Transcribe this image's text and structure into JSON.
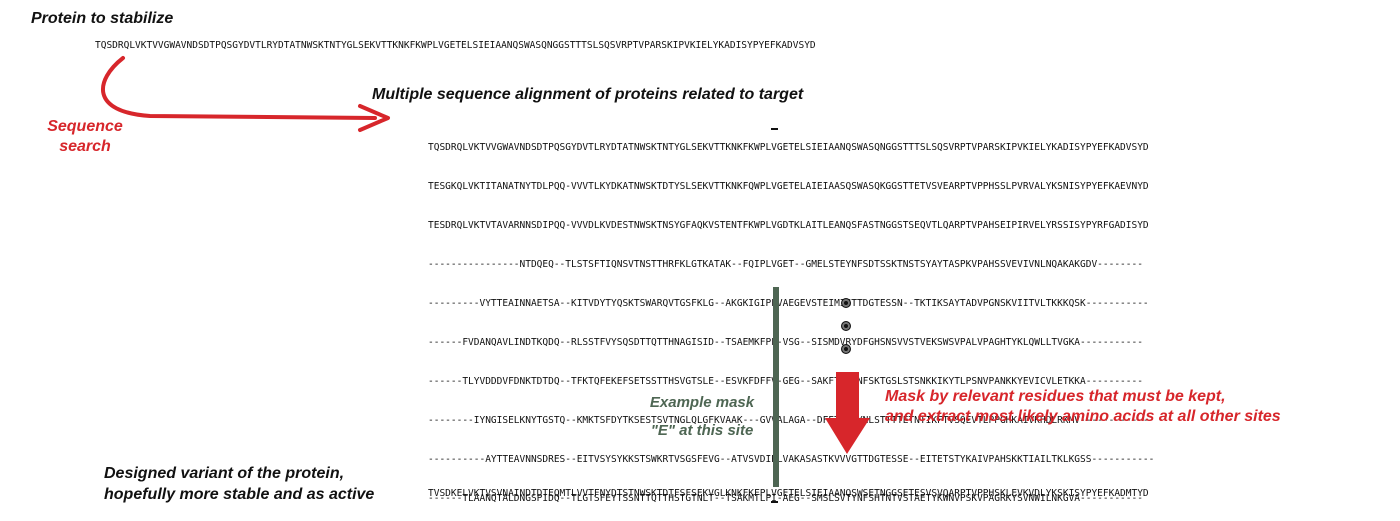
{
  "protein": {
    "heading": "Protein to stabilize",
    "sequence": "TQSDRQLVKTVVGWAVNDSDTPQSGYDVTLRYDTATNWSKTNTYGLSEKVTTKNKFKWPLVGETELSIEIAANQSWASQNGGSTTTSLSQSVRPTVPARSKIPVKIELYKADISYPYEFKADVSYD"
  },
  "search": {
    "label_line1": "Sequence",
    "label_line2": "search"
  },
  "msa": {
    "heading": "Multiple sequence alignment of proteins related to target",
    "rows": [
      "TQSDRQLVKTVVGWAVNDSDTPQSGYDVTLRYDTATNWSKTNTYGLSEKVTTKNKFKWPLVGETELSIEIAANQSWASQNGGSTTTSLSQSVRPTVPARSKIPVKIELYKADISYPYEFKADVSYD",
      "TESGKQLVKTITANATNYTDLPQQ-VVVTLKYDKATNWSKTDTYSLSEKVTTKNKFQWPLVGETELAIEIAASQSWASQKGGSTTETVSVEARPTVPPHSSLPVRVALYKSNISYPYEFKAEVNYD",
      "TESDRQLVKTVTAVARNNSDIPQQ-VVVDLKVDESTNWSKTNSYGFAQKVSTENTFKWPLVGDTKLAITLEANQSFASTNGGSTSEQVTLQARPTVPAHSEIPIRVELYRSSISYPYRFGADISYD",
      "----------------NTDQEQ--TLSTSFTIQNSVTNSTTHRFKLGTKATAK--FQIPLVGET--GMELSTEYNFSDTSSKTNSTSYAYTASPKVPAHSSVEVIVNLNQAKAKGDV--------",
      "---------VYTTEAINNAETSA--KITVDYTYQSKTSWARQVTGSFKLG--AKGKIGIPFVAEGEVSTEIMIGTTDGTESSN--TKTIKSAYTADVPGNSKVIITVLTKKKQSK-----------",
      "------FVDANQAVLINDTKQDQ--RLSSTFVYSQSDTTQTTHNAGISID--TSAEMKFPF-VSG--SISMDVRYDFGHSNSVVSTVEKSWSVPALVPAGHTYKLQWLLTVGKA-----------",
      "------TLYVDDDVFDNKTDTDQ--TFKTQFEKEFSETSSTTHSVGTSLE--ESVKFDFFV-GEG--SAKFTVNYNFSKTGSLSTSNKKIKYTLPSNVPANKKYEVICVLETKKA----------",
      "--------IYNGISELKNYTGSTQ--KMKTSFDYTKSESTSVTNGLQLGFKVAAK---GVVALAGA--DFETSVTYNLSTTTTETNTIKFTVSQEVTLPPGHKAIVKHDLRKMV------------",
      "----------AYTTEAVNNSDRES--EITVSYSYKKSTSWKRTVSGSFEVG--ATVSVDIPLVAKASASTKVVVGTTDGTESSE--EITETSTYKAIVPAHSKKTIAILTKLKGSS-----------",
      "------TLAANQTALDNGSPIDQ--TLGTSFEYTSSNTTQTTHSTGTNLT--TSAKMTLPI-AEG--SMSLSVTYNFSHTNTVSTAETYKWNVPSKVPAGRKYSVNWILNKGVA-----------"
    ]
  },
  "mask": {
    "label_line1": "Example mask",
    "label_line2": "\"E\" at this site"
  },
  "mask_action": {
    "line1": "Mask by relevant residues that must be kept,",
    "line2": "and extract most likely amino acids at all other sites"
  },
  "designed": {
    "heading_line1": "Designed variant of the protein,",
    "heading_line2": "hopefully more stable and as active",
    "sequence": "TVSDKELVKTVSVNAINDTDTEQMTLVVTFNYDTSTNWSKTDTFSFSEKVGLKNKFKFPLVGETELSIEIAANQSWSETNGGSETESVSVQARPTVPPHSKLEVKVDLYKSKISYPYEFKADMTYD"
  },
  "colors": {
    "red": "#d7262b",
    "green": "#4e6653",
    "text": "#111111"
  }
}
